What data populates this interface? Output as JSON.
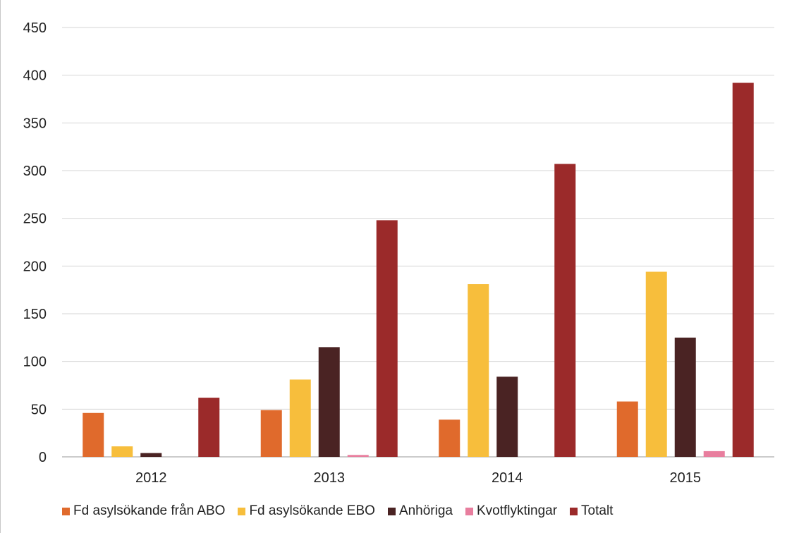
{
  "chart_data": {
    "type": "bar",
    "title": "",
    "xlabel": "",
    "ylabel": "",
    "categories": [
      "2012",
      "2013",
      "2014",
      "2015"
    ],
    "ylim": [
      0,
      450
    ],
    "yticks": [
      "0",
      "50",
      "100",
      "150",
      "200",
      "250",
      "300",
      "350",
      "400",
      "450"
    ],
    "grid": true,
    "legend_position": "bottom",
    "series": [
      {
        "name": "Fd asylsökande från ABO",
        "color": "#e06a2c",
        "values": [
          46,
          49,
          39,
          58
        ]
      },
      {
        "name": "Fd asylsökande EBO",
        "color": "#f7be3c",
        "values": [
          11,
          81,
          181,
          194
        ]
      },
      {
        "name": "Anhöriga",
        "color": "#4a2323",
        "values": [
          4,
          115,
          84,
          125
        ]
      },
      {
        "name": "Kvotflyktingar",
        "color": "#e87e9e",
        "values": [
          0,
          2,
          0,
          6
        ]
      },
      {
        "name": "Totalt",
        "color": "#9b2a2a",
        "values": [
          62,
          248,
          307,
          392
        ]
      }
    ]
  }
}
